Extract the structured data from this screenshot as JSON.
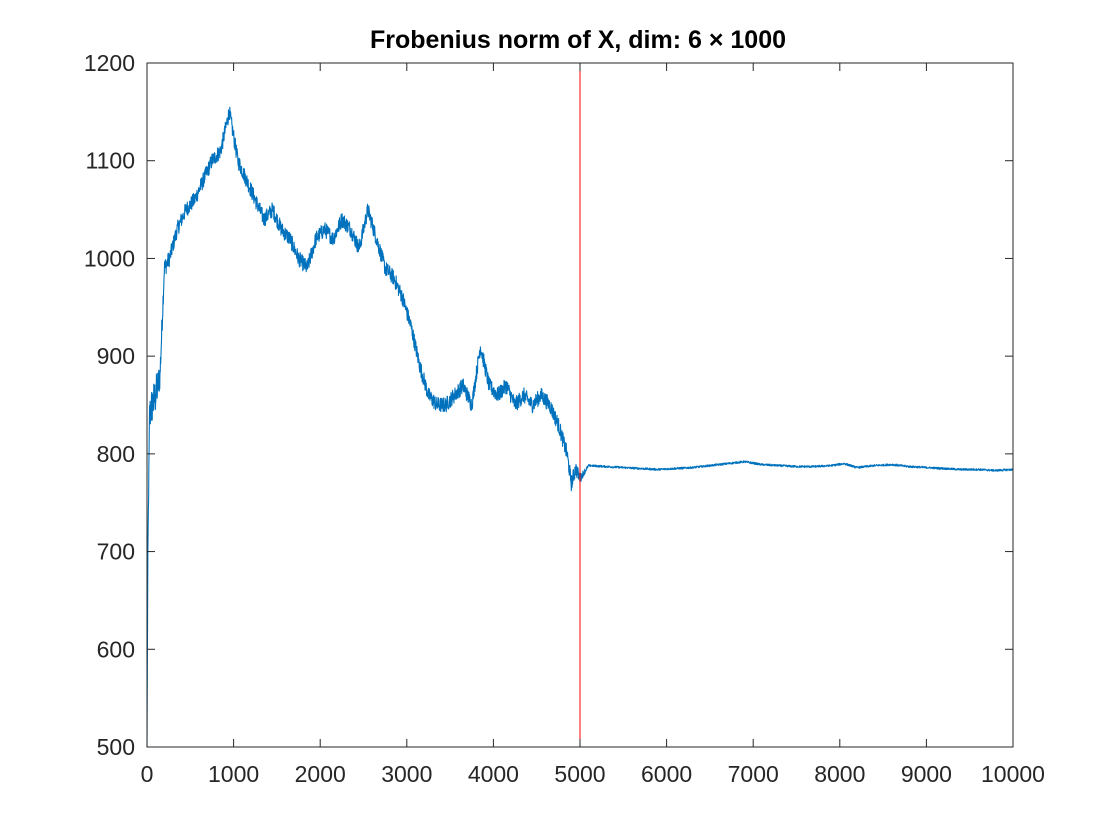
{
  "chart_data": {
    "type": "line",
    "title": "Frobenius norm of X, dim: 6 × 1000",
    "xlabel": "",
    "ylabel": "",
    "xlim": [
      0,
      10000
    ],
    "ylim": [
      500,
      1200
    ],
    "x_ticks": [
      0,
      1000,
      2000,
      3000,
      4000,
      5000,
      6000,
      7000,
      8000,
      9000,
      10000
    ],
    "y_ticks": [
      500,
      600,
      700,
      800,
      900,
      1000,
      1100,
      1200
    ],
    "x_tick_labels": [
      "0",
      "1000",
      "2000",
      "3000",
      "4000",
      "5000",
      "6000",
      "7000",
      "8000",
      "9000",
      "10000"
    ],
    "y_tick_labels": [
      "500",
      "600",
      "700",
      "800",
      "900",
      "1000",
      "1100",
      "1200"
    ],
    "grid": false,
    "box": true,
    "series": [
      {
        "color": "#0072BD",
        "x": [
          0,
          10,
          30,
          60,
          100,
          150,
          200,
          260,
          350,
          450,
          550,
          650,
          750,
          850,
          950,
          1050,
          1150,
          1250,
          1350,
          1450,
          1550,
          1650,
          1750,
          1850,
          1950,
          2050,
          2150,
          2250,
          2350,
          2450,
          2550,
          2650,
          2750,
          2850,
          2950,
          3050,
          3150,
          3250,
          3350,
          3450,
          3550,
          3650,
          3750,
          3850,
          3950,
          4050,
          4150,
          4250,
          4350,
          4450,
          4550,
          4650,
          4750,
          4850,
          4900,
          4950,
          5000,
          5100,
          5300,
          5500,
          5700,
          5900,
          6100,
          6300,
          6500,
          6700,
          6900,
          7100,
          7300,
          7500,
          7700,
          7900,
          8050,
          8200,
          8400,
          8600,
          8800,
          9000,
          9200,
          9400,
          9600,
          9800,
          10000
        ],
        "y": [
          500,
          700,
          840,
          850,
          860,
          880,
          990,
          1000,
          1030,
          1050,
          1060,
          1080,
          1100,
          1110,
          1150,
          1100,
          1080,
          1060,
          1040,
          1050,
          1030,
          1020,
          1000,
          990,
          1020,
          1030,
          1020,
          1040,
          1030,
          1010,
          1050,
          1020,
          990,
          980,
          960,
          930,
          890,
          860,
          850,
          850,
          860,
          870,
          850,
          910,
          870,
          860,
          870,
          850,
          860,
          850,
          860,
          850,
          830,
          800,
          770,
          785,
          775,
          788,
          787,
          786,
          785,
          784,
          785,
          786,
          788,
          790,
          792,
          789,
          788,
          787,
          787,
          788,
          790,
          786,
          788,
          789,
          787,
          786,
          785,
          784,
          784,
          783,
          784
        ],
        "noise": [
          0,
          0,
          20,
          20,
          20,
          15,
          10,
          8,
          8,
          8,
          8,
          8,
          8,
          8,
          8,
          8,
          8,
          8,
          8,
          8,
          8,
          8,
          8,
          8,
          8,
          8,
          8,
          8,
          8,
          8,
          8,
          8,
          8,
          8,
          8,
          8,
          8,
          8,
          8,
          8,
          8,
          8,
          8,
          8,
          8,
          8,
          8,
          8,
          8,
          8,
          8,
          8,
          8,
          8,
          8,
          8,
          5,
          1,
          1,
          1,
          1,
          1,
          1,
          1,
          1,
          1,
          1,
          1,
          1,
          1,
          1,
          1,
          1,
          1,
          1,
          1,
          1,
          1,
          1,
          1,
          1,
          1,
          1
        ]
      }
    ],
    "vline": {
      "x": 5000,
      "color": "#FF0000"
    }
  }
}
